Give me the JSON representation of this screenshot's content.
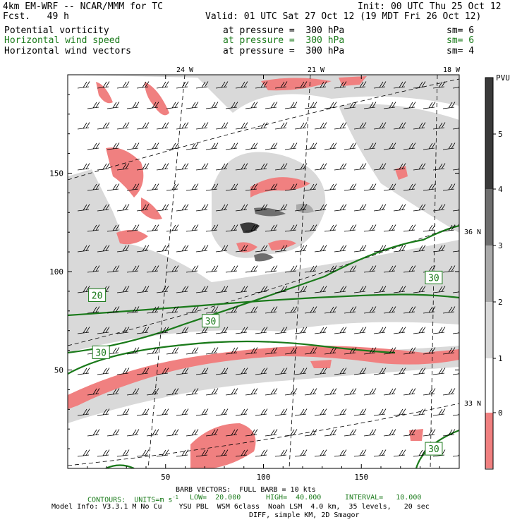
{
  "header": {
    "model": "4km EM-WRF -- NCAR/MMM for TC",
    "init": "Init: 00 UTC Thu 25 Oct 12",
    "fcst": "Fcst.   49 h",
    "valid": "Valid: 01 UTC Sat 27 Oct 12 (19 MDT Fri 26 Oct 12)",
    "fields": [
      {
        "name": "Potential vorticity",
        "level": "at pressure =  300 hPa",
        "sm": "sm= 6",
        "color": "#000000"
      },
      {
        "name": "Horizontal wind speed",
        "level": "at pressure =  300 hPa",
        "sm": "sm= 6",
        "color": "#1a7a1a"
      },
      {
        "name": "Horizontal wind vectors",
        "level": "at pressure =  300 hPa",
        "sm": "sm= 4",
        "color": "#000000"
      }
    ]
  },
  "colorbar": {
    "unit": "PVU",
    "levels": [
      0,
      1,
      2,
      3,
      4,
      5
    ],
    "colors": [
      "#f08080",
      "#ffffff",
      "#d9d9d9",
      "#a9a9a9",
      "#6e6e6e",
      "#3a3a3a"
    ]
  },
  "chart_data": {
    "type": "contour-map",
    "xlim": [
      0,
      200
    ],
    "ylim": [
      0,
      200
    ],
    "x_ticks": [
      50,
      100,
      150
    ],
    "y_ticks": [
      50,
      100,
      150
    ],
    "lon_labels": [
      "24 W",
      "21 W",
      "18 W"
    ],
    "lat_labels": [
      "36 N",
      "33 N"
    ],
    "wind_contours": {
      "color": "#1a7a1a",
      "levels": [
        20,
        30
      ],
      "labels": [
        {
          "text": "20",
          "x": 15,
          "y": 88
        },
        {
          "text": "30",
          "x": 73,
          "y": 75
        },
        {
          "text": "30",
          "x": 17,
          "y": 59
        },
        {
          "text": "30",
          "x": 187,
          "y": 97
        },
        {
          "text": "30",
          "x": 187,
          "y": 10
        }
      ]
    }
  },
  "footer": {
    "barb": "BARB VECTORS:  FULL BARB = 10 kts",
    "contours": "CONTOURS:  UNITS=m s",
    "contours_exp": "-1",
    "low": "LOW=  20.000",
    "high": "HIGH=  40.000",
    "interval": "INTERVAL=   10.000",
    "model_info": "Model Info: V3.3.1 M No Cu    YSU PBL  WSM 6class  Noah LSM  4.0 km,  35 levels,   20 sec",
    "diff": "DIFF, simple KM, 2D Smagor"
  }
}
